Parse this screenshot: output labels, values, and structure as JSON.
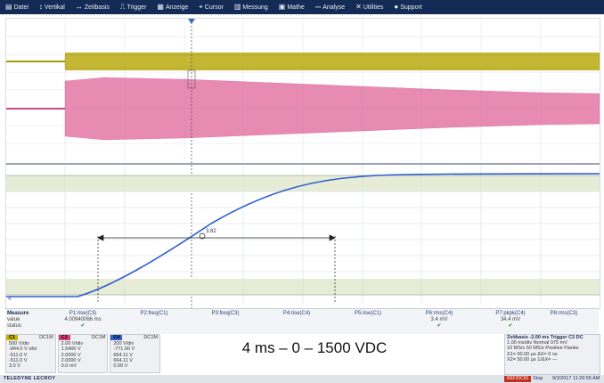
{
  "menu": [
    {
      "label": "Datei",
      "icon": "▤"
    },
    {
      "label": "Vertikal",
      "icon": "↕"
    },
    {
      "label": "Zeitbasis",
      "icon": "↔"
    },
    {
      "label": "Trigger",
      "icon": "⎍"
    },
    {
      "label": "Anzeige",
      "icon": "▦"
    },
    {
      "label": "Cursor",
      "icon": "⌖"
    },
    {
      "label": "Messung",
      "icon": "▥"
    },
    {
      "label": "Mathe",
      "icon": "▣"
    },
    {
      "label": "Analyse",
      "icon": "⎓"
    },
    {
      "label": "Utilities",
      "icon": "✕"
    },
    {
      "label": "Support",
      "icon": "●"
    }
  ],
  "cursor_label": "3.82",
  "measure": {
    "row_labels": [
      "Measure",
      "value",
      "status"
    ],
    "columns": [
      {
        "param": "P1:rise(C3)",
        "value": "4.00940066 ms",
        "status": "✔"
      },
      {
        "param": "P2:freq(C1)",
        "value": "",
        "status": ""
      },
      {
        "param": "P3:freq(C3)",
        "value": "",
        "status": ""
      },
      {
        "param": "P4:rise(C4)",
        "value": "",
        "status": ""
      },
      {
        "param": "P5:rise(C1)",
        "value": "",
        "status": ""
      },
      {
        "param": "P6:rms(C4)",
        "value": "3.4 mV",
        "status": "✔"
      },
      {
        "param": "P7:pkpk(C4)",
        "value": "34.4 mV",
        "status": "✔"
      },
      {
        "param": "P8:rms(C3)",
        "value": "",
        "status": ""
      }
    ]
  },
  "channels": [
    {
      "tag": "C1",
      "mode": "DC1M",
      "color": "#c8b400",
      "lines": [
        "500 V/div",
        "-844.0 V ofst",
        "-511.0 V",
        "-511.0 V",
        "3.0 V"
      ]
    },
    {
      "tag": "C3",
      "mode": "DC1M",
      "color": "#d6407a",
      "lines": [
        "2.00 V/div",
        "1.5400 V",
        "2.0000 V",
        "2.0000 V",
        "0.0 mV"
      ]
    },
    {
      "tag": "C4",
      "mode": "DC1M",
      "color": "#2f5fd0",
      "lines": [
        "200 V/div",
        "-771.00 V",
        "664.11 V",
        "664.11 V",
        "0.00 V"
      ]
    }
  ],
  "caption": "4 ms – 0 – 1500 VDC",
  "timebase": {
    "rows": [
      "Zeitbasis -2.00 ms Trigger C3 DC",
      "1.00 ms/div Normal 975 mV",
      "10 MS/s 50 MS/s Positive Flanke",
      "X1= 50.00 µs ΔX= 0 ns",
      "X2= 50.00 µs 1/ΔX= ---"
    ]
  },
  "status": {
    "brand": "TELEDYNE LECROY",
    "record": "REF/DC50",
    "state": "Stop",
    "datetime": "9/2/2017 11:26:55 AM"
  }
}
